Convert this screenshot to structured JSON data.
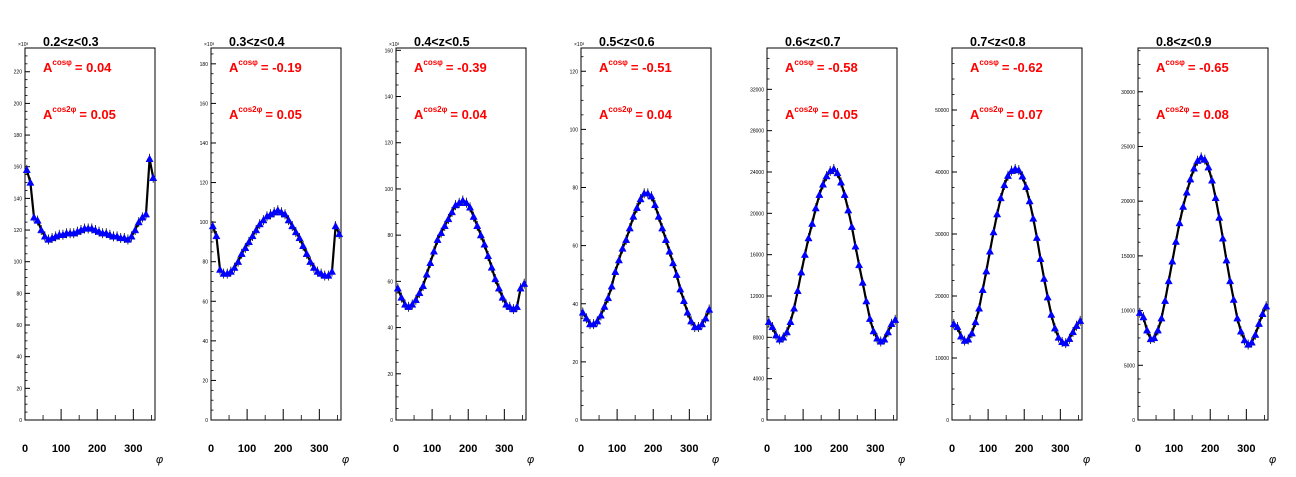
{
  "colors": {
    "frame": "#000000",
    "fit_line": "#000000",
    "points": "#0000ff",
    "annotation": "#ff0000"
  },
  "chart_data": [
    {
      "type": "scatter",
      "title": "0.2<z<0.3",
      "xlabel": "φ",
      "ylabel": "",
      "exponent_label": "×10³",
      "xlim": [
        0,
        360
      ],
      "ylim": [
        0,
        235
      ],
      "x_ticks": [
        0,
        100,
        200,
        300
      ],
      "y_ticks": [
        0,
        20,
        40,
        60,
        80,
        100,
        120,
        140,
        160,
        180,
        200,
        220
      ],
      "y_tick_labels": [
        "0",
        "20",
        "40",
        "60",
        "80",
        "100",
        "120",
        "140",
        "160",
        "180",
        "200",
        "220"
      ],
      "annotations": [
        {
          "prefix": "A",
          "superscript": "cosφ",
          "value": "= 0.04"
        },
        {
          "prefix": "A",
          "superscript": "cos2φ",
          "value": "= 0.05"
        }
      ],
      "x": [
        5,
        15,
        25,
        35,
        45,
        55,
        65,
        75,
        85,
        95,
        105,
        115,
        125,
        135,
        145,
        155,
        165,
        175,
        185,
        195,
        205,
        215,
        225,
        235,
        245,
        255,
        265,
        275,
        285,
        295,
        305,
        315,
        325,
        335,
        345,
        355
      ],
      "y": [
        158,
        150,
        128,
        126,
        120,
        116,
        114,
        115,
        116,
        117,
        117,
        118,
        118,
        118,
        119,
        120,
        121,
        121,
        121,
        120,
        119,
        118,
        118,
        117,
        116,
        116,
        115,
        115,
        114,
        116,
        120,
        125,
        128,
        130,
        165,
        153
      ]
    },
    {
      "type": "scatter",
      "title": "0.3<z<0.4",
      "xlabel": "φ",
      "ylabel": "",
      "exponent_label": "×10³",
      "xlim": [
        0,
        360
      ],
      "ylim": [
        0,
        188
      ],
      "x_ticks": [
        0,
        100,
        200,
        300
      ],
      "y_ticks": [
        0,
        20,
        40,
        60,
        80,
        100,
        120,
        140,
        160,
        180
      ],
      "y_tick_labels": [
        "0",
        "20",
        "40",
        "60",
        "80",
        "100",
        "120",
        "140",
        "160",
        "180"
      ],
      "annotations": [
        {
          "prefix": "A",
          "superscript": "cosφ",
          "value": "= -0.19"
        },
        {
          "prefix": "A",
          "superscript": "cos2φ",
          "value": "= 0.05"
        }
      ],
      "x": [
        5,
        15,
        25,
        35,
        45,
        55,
        65,
        75,
        85,
        95,
        105,
        115,
        125,
        135,
        145,
        155,
        165,
        175,
        185,
        195,
        205,
        215,
        225,
        235,
        245,
        255,
        265,
        275,
        285,
        295,
        305,
        315,
        325,
        335,
        345,
        355
      ],
      "y": [
        98,
        93,
        76,
        74,
        74,
        75,
        77,
        80,
        84,
        87,
        90,
        93,
        96,
        99,
        101,
        103,
        104,
        105,
        106,
        105,
        104,
        101,
        98,
        95,
        92,
        88,
        84,
        80,
        77,
        75,
        74,
        73,
        73,
        75,
        98,
        94
      ]
    },
    {
      "type": "scatter",
      "title": "0.4<z<0.5",
      "xlabel": "φ",
      "ylabel": "",
      "exponent_label": "×10³",
      "xlim": [
        0,
        360
      ],
      "ylim": [
        0,
        161
      ],
      "x_ticks": [
        0,
        100,
        200,
        300
      ],
      "y_ticks": [
        0,
        20,
        40,
        60,
        80,
        100,
        120,
        140,
        160
      ],
      "y_tick_labels": [
        "0",
        "20",
        "40",
        "60",
        "80",
        "100",
        "120",
        "140",
        "160"
      ],
      "annotations": [
        {
          "prefix": "A",
          "superscript": "cosφ",
          "value": "= -0.39"
        },
        {
          "prefix": "A",
          "superscript": "cos2φ",
          "value": "= 0.04"
        }
      ],
      "x": [
        5,
        15,
        25,
        35,
        45,
        55,
        65,
        75,
        85,
        95,
        105,
        115,
        125,
        135,
        145,
        155,
        165,
        175,
        185,
        195,
        205,
        215,
        225,
        235,
        245,
        255,
        265,
        275,
        285,
        295,
        305,
        315,
        325,
        335,
        345,
        355
      ],
      "y": [
        57,
        53,
        50,
        49,
        50,
        52,
        55,
        58,
        63,
        68,
        73,
        78,
        81,
        84,
        87,
        90,
        93,
        94,
        95,
        94,
        92,
        88,
        84,
        80,
        76,
        71,
        66,
        61,
        57,
        53,
        50,
        49,
        48,
        49,
        57,
        59
      ]
    },
    {
      "type": "scatter",
      "title": "0.5<z<0.6",
      "xlabel": "φ",
      "ylabel": "",
      "exponent_label": "×10³",
      "xlim": [
        0,
        360
      ],
      "ylim": [
        0,
        128
      ],
      "x_ticks": [
        0,
        100,
        200,
        300
      ],
      "y_ticks": [
        0,
        20,
        40,
        60,
        80,
        100,
        120
      ],
      "y_tick_labels": [
        "0",
        "20",
        "40",
        "60",
        "80",
        "100",
        "120"
      ],
      "annotations": [
        {
          "prefix": "A",
          "superscript": "cosφ",
          "value": "= -0.51"
        },
        {
          "prefix": "A",
          "superscript": "cos2φ",
          "value": "= 0.04"
        }
      ],
      "x": [
        5,
        15,
        25,
        35,
        45,
        55,
        65,
        75,
        85,
        95,
        105,
        115,
        125,
        135,
        145,
        155,
        165,
        175,
        185,
        195,
        205,
        215,
        225,
        235,
        245,
        255,
        265,
        275,
        285,
        295,
        305,
        315,
        325,
        335,
        345,
        355
      ],
      "y": [
        37,
        35,
        33,
        33,
        34,
        36,
        39,
        42,
        46,
        51,
        55,
        59,
        62,
        66,
        70,
        73,
        76,
        78,
        78,
        77,
        74,
        70,
        66,
        62,
        58,
        54,
        50,
        45,
        41,
        37,
        34,
        32,
        32,
        33,
        35,
        38
      ]
    },
    {
      "type": "scatter",
      "title": "0.6<z<0.7",
      "xlabel": "φ",
      "ylabel": "",
      "exponent_label": "",
      "xlim": [
        0,
        360
      ],
      "ylim": [
        0,
        36000
      ],
      "x_ticks": [
        0,
        100,
        200,
        300
      ],
      "y_ticks": [
        0,
        4000,
        8000,
        12000,
        16000,
        20000,
        24000,
        28000,
        32000
      ],
      "y_tick_labels": [
        "0",
        "4000",
        "8000",
        "12000",
        "16000",
        "20000",
        "24000",
        "28000",
        "32000"
      ],
      "annotations": [
        {
          "prefix": "A",
          "superscript": "cosφ",
          "value": "= -0.58"
        },
        {
          "prefix": "A",
          "superscript": "cos2φ",
          "value": "= 0.05"
        }
      ],
      "x": [
        5,
        15,
        25,
        35,
        45,
        55,
        65,
        75,
        85,
        95,
        105,
        115,
        125,
        135,
        145,
        155,
        165,
        175,
        185,
        195,
        205,
        215,
        225,
        235,
        245,
        255,
        265,
        275,
        285,
        295,
        305,
        315,
        325,
        335,
        345,
        355
      ],
      "y": [
        9500,
        9000,
        8200,
        7800,
        8000,
        8500,
        9500,
        10800,
        12500,
        14300,
        16000,
        17600,
        19000,
        20500,
        21800,
        22800,
        23600,
        24100,
        24300,
        23900,
        23000,
        21800,
        20300,
        18700,
        16800,
        15000,
        13300,
        11500,
        9800,
        8600,
        7900,
        7600,
        7800,
        8500,
        9300,
        9700
      ]
    },
    {
      "type": "scatter",
      "title": "0.7<z<0.8",
      "xlabel": "φ",
      "ylabel": "",
      "exponent_label": "",
      "xlim": [
        0,
        360
      ],
      "ylim": [
        0,
        60000
      ],
      "x_ticks": [
        0,
        100,
        200,
        300
      ],
      "y_ticks": [
        0,
        10000,
        20000,
        30000,
        40000,
        50000
      ],
      "y_tick_labels": [
        "0",
        "10000",
        "20000",
        "30000",
        "40000",
        "50000"
      ],
      "annotations": [
        {
          "prefix": "A",
          "superscript": "cosφ",
          "value": "= -0.62"
        },
        {
          "prefix": "A",
          "superscript": "cos2φ",
          "value": "= 0.07"
        }
      ],
      "x": [
        5,
        15,
        25,
        35,
        45,
        55,
        65,
        75,
        85,
        95,
        105,
        115,
        125,
        135,
        145,
        155,
        165,
        175,
        185,
        195,
        205,
        215,
        225,
        235,
        245,
        255,
        265,
        275,
        285,
        295,
        305,
        315,
        325,
        335,
        345,
        355
      ],
      "y": [
        15500,
        15000,
        13500,
        12800,
        13000,
        14000,
        15800,
        18000,
        21000,
        24000,
        27200,
        30300,
        33200,
        35800,
        37900,
        39400,
        40200,
        40500,
        40300,
        39300,
        37600,
        35300,
        32500,
        29400,
        26000,
        22800,
        19800,
        17000,
        14800,
        13300,
        12600,
        12400,
        13100,
        14200,
        15200,
        16000
      ]
    },
    {
      "type": "scatter",
      "title": "0.8<z<0.9",
      "xlabel": "φ",
      "ylabel": "",
      "exponent_label": "",
      "xlim": [
        0,
        360
      ],
      "ylim": [
        0,
        34000
      ],
      "x_ticks": [
        0,
        100,
        200,
        300
      ],
      "y_ticks": [
        0,
        5000,
        10000,
        15000,
        20000,
        25000,
        30000
      ],
      "y_tick_labels": [
        "0",
        "5000",
        "10000",
        "15000",
        "20000",
        "25000",
        "30000"
      ],
      "annotations": [
        {
          "prefix": "A",
          "superscript": "cosφ",
          "value": "= -0.65"
        },
        {
          "prefix": "A",
          "superscript": "cos2φ",
          "value": "= 0.08"
        }
      ],
      "x": [
        5,
        15,
        25,
        35,
        45,
        55,
        65,
        75,
        85,
        95,
        105,
        115,
        125,
        135,
        145,
        155,
        165,
        175,
        185,
        195,
        205,
        215,
        225,
        235,
        245,
        255,
        265,
        275,
        285,
        295,
        305,
        315,
        325,
        335,
        345,
        355
      ],
      "y": [
        9800,
        9400,
        8200,
        7400,
        7500,
        8200,
        9300,
        10900,
        12700,
        14500,
        16300,
        18000,
        19500,
        20800,
        22000,
        23000,
        23700,
        24000,
        23800,
        23100,
        21900,
        20300,
        18500,
        16600,
        14600,
        12700,
        11000,
        9300,
        8100,
        7300,
        6900,
        7100,
        7800,
        8800,
        9700,
        10400
      ]
    }
  ]
}
